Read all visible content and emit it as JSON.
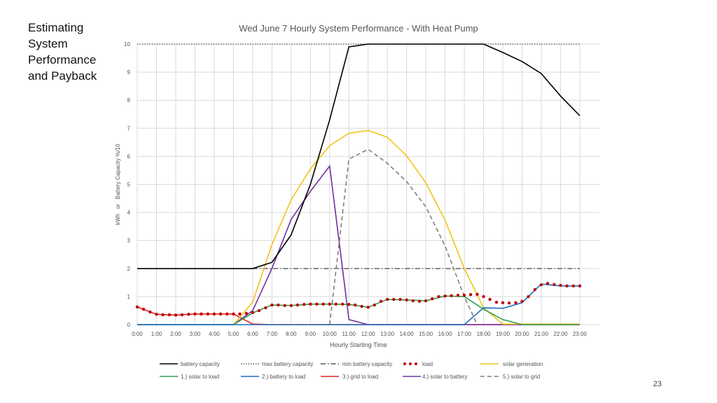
{
  "slide": {
    "side_title": "Estimating System Performance and Payback",
    "page_number": "23"
  },
  "chart_data": {
    "type": "line",
    "title": "Wed June 7 Hourly System Performance - With Heat Pump",
    "xlabel": "Hourly Starting Time",
    "ylabel": "kWh   or   Battery Capacity %/10",
    "ylim": [
      0,
      10
    ],
    "yticks": [
      0,
      1,
      2,
      3,
      4,
      5,
      6,
      7,
      8,
      9,
      10
    ],
    "grid": true,
    "legend_position": "bottom",
    "x": [
      "0:00",
      "1:00",
      "2:00",
      "3:00",
      "4:00",
      "5:00",
      "6:00",
      "7:00",
      "8:00",
      "9:00",
      "10:00",
      "11:00",
      "12:00",
      "13:00",
      "14:00",
      "15:00",
      "16:00",
      "17:00",
      "18:00",
      "19:00",
      "20:00",
      "21:00",
      "22:00",
      "23:00"
    ],
    "series": [
      {
        "name": "battery capacity",
        "color": "#000000",
        "style": "solid",
        "points": [
          [
            0,
            2.0
          ],
          [
            6,
            2.0
          ],
          [
            7,
            2.22
          ],
          [
            8,
            3.2
          ],
          [
            9,
            5.0
          ],
          [
            10,
            7.3
          ],
          [
            11,
            9.9
          ],
          [
            12,
            10.0
          ],
          [
            17,
            10.0
          ],
          [
            18,
            10.0
          ],
          [
            19,
            9.7
          ],
          [
            20,
            9.38
          ],
          [
            21,
            8.95
          ],
          [
            22,
            8.15
          ],
          [
            23,
            7.45
          ]
        ]
      },
      {
        "name": "max battery capacity",
        "color": "#555555",
        "style": "dotted",
        "points": [
          [
            0,
            10
          ],
          [
            23,
            10
          ]
        ]
      },
      {
        "name": "min battery capacity",
        "color": "#555555",
        "style": "dashdot",
        "points": [
          [
            6,
            2.0
          ],
          [
            23,
            2.0
          ]
        ]
      },
      {
        "name": "load",
        "color": "#C00000",
        "style": "dots",
        "points": [
          [
            0,
            0.63
          ],
          [
            0.33,
            0.55
          ],
          [
            0.67,
            0.45
          ],
          [
            1,
            0.37
          ],
          [
            1.33,
            0.35
          ],
          [
            1.67,
            0.35
          ],
          [
            2,
            0.34
          ],
          [
            2.33,
            0.35
          ],
          [
            2.67,
            0.37
          ],
          [
            3,
            0.38
          ],
          [
            3.33,
            0.38
          ],
          [
            3.67,
            0.38
          ],
          [
            4,
            0.38
          ],
          [
            4.33,
            0.38
          ],
          [
            4.67,
            0.38
          ],
          [
            5,
            0.38
          ],
          [
            5.33,
            0.38
          ],
          [
            5.67,
            0.4
          ],
          [
            6,
            0.43
          ],
          [
            6.33,
            0.5
          ],
          [
            6.67,
            0.6
          ],
          [
            7,
            0.7
          ],
          [
            7.33,
            0.7
          ],
          [
            7.67,
            0.68
          ],
          [
            8,
            0.68
          ],
          [
            8.33,
            0.7
          ],
          [
            8.67,
            0.72
          ],
          [
            9,
            0.73
          ],
          [
            9.33,
            0.73
          ],
          [
            9.67,
            0.73
          ],
          [
            10,
            0.73
          ],
          [
            10.33,
            0.73
          ],
          [
            10.67,
            0.73
          ],
          [
            11,
            0.72
          ],
          [
            11.33,
            0.7
          ],
          [
            11.67,
            0.65
          ],
          [
            12,
            0.62
          ],
          [
            12.33,
            0.7
          ],
          [
            12.67,
            0.83
          ],
          [
            13,
            0.9
          ],
          [
            13.33,
            0.9
          ],
          [
            13.67,
            0.9
          ],
          [
            14,
            0.88
          ],
          [
            14.33,
            0.85
          ],
          [
            14.67,
            0.83
          ],
          [
            15,
            0.85
          ],
          [
            15.33,
            0.92
          ],
          [
            15.67,
            1.0
          ],
          [
            16,
            1.02
          ],
          [
            16.33,
            1.03
          ],
          [
            16.67,
            1.05
          ],
          [
            17,
            1.05
          ],
          [
            17.33,
            1.07
          ],
          [
            17.67,
            1.08
          ],
          [
            18,
            1.0
          ],
          [
            18.33,
            0.9
          ],
          [
            18.67,
            0.8
          ],
          [
            19,
            0.78
          ],
          [
            19.33,
            0.77
          ],
          [
            19.67,
            0.78
          ],
          [
            20,
            0.83
          ],
          [
            20.33,
            1.0
          ],
          [
            20.67,
            1.25
          ],
          [
            21,
            1.42
          ],
          [
            21.33,
            1.47
          ],
          [
            21.67,
            1.43
          ],
          [
            22,
            1.4
          ],
          [
            22.33,
            1.38
          ],
          [
            22.67,
            1.38
          ],
          [
            23,
            1.38
          ]
        ]
      },
      {
        "name": "solar generation",
        "color": "#F2C31B",
        "style": "solid",
        "points": [
          [
            5,
            0
          ],
          [
            6,
            0.8
          ],
          [
            7,
            2.85
          ],
          [
            8,
            4.45
          ],
          [
            9,
            5.55
          ],
          [
            10,
            6.38
          ],
          [
            11,
            6.82
          ],
          [
            12,
            6.92
          ],
          [
            13,
            6.68
          ],
          [
            14,
            6.02
          ],
          [
            15,
            5.05
          ],
          [
            16,
            3.72
          ],
          [
            17,
            2.0
          ],
          [
            18,
            0.6
          ],
          [
            19,
            0.02
          ],
          [
            23,
            0.02
          ]
        ]
      },
      {
        "name": "1.) solar to load",
        "color": "#2E9E4F",
        "style": "solid",
        "points": [
          [
            0,
            0
          ],
          [
            5,
            0
          ],
          [
            6,
            0.42
          ],
          [
            7,
            0.7
          ],
          [
            8,
            0.68
          ],
          [
            9,
            0.73
          ],
          [
            10,
            0.73
          ],
          [
            11,
            0.72
          ],
          [
            12,
            0.62
          ],
          [
            13,
            0.9
          ],
          [
            14,
            0.88
          ],
          [
            15,
            0.85
          ],
          [
            16,
            1.02
          ],
          [
            17,
            1.0
          ],
          [
            18,
            0.55
          ],
          [
            19,
            0.18
          ],
          [
            20,
            0.0
          ],
          [
            23,
            0.0
          ]
        ]
      },
      {
        "name": "2.) battery to load",
        "color": "#1F6FBF",
        "style": "solid",
        "points": [
          [
            0,
            0
          ],
          [
            17,
            0
          ],
          [
            18,
            0.6
          ],
          [
            19,
            0.58
          ],
          [
            20,
            0.78
          ],
          [
            21,
            1.45
          ],
          [
            22,
            1.38
          ],
          [
            23,
            1.38
          ]
        ]
      },
      {
        "name": "3.) grid to load",
        "color": "#E22020",
        "style": "solid",
        "points": [
          [
            0,
            0.63
          ],
          [
            1,
            0.37
          ],
          [
            2,
            0.34
          ],
          [
            3,
            0.38
          ],
          [
            4,
            0.38
          ],
          [
            5,
            0.38
          ],
          [
            6,
            0.02
          ],
          [
            7,
            0
          ],
          [
            23,
            0
          ]
        ]
      },
      {
        "name": "4.) solar to battery",
        "color": "#7030A0",
        "style": "solid",
        "points": [
          [
            0,
            0
          ],
          [
            5,
            0
          ],
          [
            6,
            0.5
          ],
          [
            7,
            2.0
          ],
          [
            8,
            3.75
          ],
          [
            9,
            4.75
          ],
          [
            10,
            5.65
          ],
          [
            11,
            0.18
          ],
          [
            12,
            0
          ],
          [
            23,
            0
          ]
        ]
      },
      {
        "name": "5.) solar to grid",
        "color": "#7F7F7F",
        "style": "dashed",
        "points": [
          [
            10,
            0
          ],
          [
            11,
            5.9
          ],
          [
            12,
            6.25
          ],
          [
            13,
            5.75
          ],
          [
            14,
            5.1
          ],
          [
            15,
            4.2
          ],
          [
            16,
            2.8
          ],
          [
            17,
            1.0
          ],
          [
            17.67,
            0
          ]
        ]
      }
    ]
  }
}
